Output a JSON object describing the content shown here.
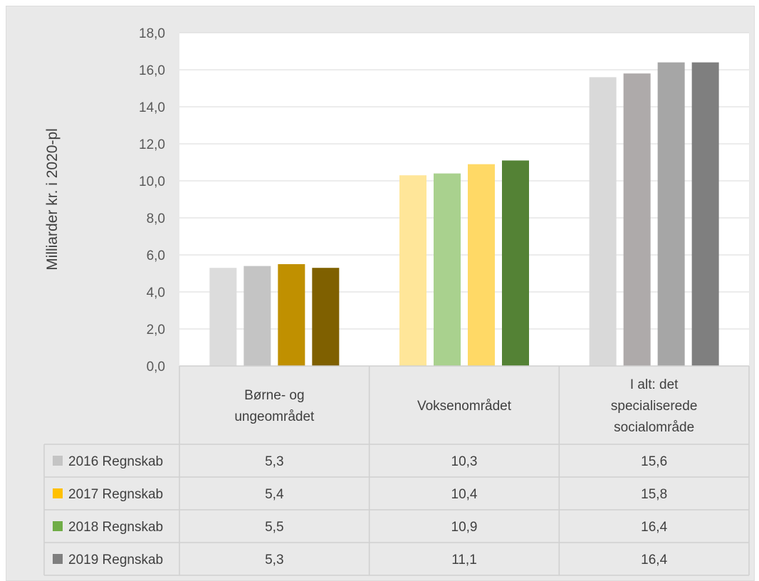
{
  "chart_data": {
    "type": "bar",
    "ylabel": "Milliarder kr. i 2020-pl",
    "ylim": [
      0,
      18
    ],
    "yticks": [
      "0,0",
      "2,0",
      "4,0",
      "6,0",
      "8,0",
      "10,0",
      "12,0",
      "14,0",
      "16,0",
      "18,0"
    ],
    "grid": true,
    "categories": [
      {
        "lines": [
          "Børne- og",
          "ungeområdet"
        ]
      },
      {
        "lines": [
          "Voksenområdet"
        ]
      },
      {
        "lines": [
          "I alt: det",
          "specialiserede",
          "socialområde"
        ]
      }
    ],
    "series": [
      {
        "name": "2016 Regnskab",
        "values": [
          5.3,
          10.3,
          15.6
        ],
        "labels": [
          "5,3",
          "10,3",
          "15,6"
        ],
        "legend_color": "#c4c4c4"
      },
      {
        "name": "2017 Regnskab",
        "values": [
          5.4,
          10.4,
          15.8
        ],
        "labels": [
          "5,4",
          "10,4",
          "15,8"
        ],
        "legend_color": "#ffc000"
      },
      {
        "name": "2018 Regnskab",
        "values": [
          5.5,
          10.9,
          16.4
        ],
        "labels": [
          "5,5",
          "10,9",
          "16,4"
        ],
        "legend_color": "#70ad47"
      },
      {
        "name": "2019 Regnskab",
        "values": [
          5.3,
          11.1,
          16.4
        ],
        "labels": [
          "5,3",
          "11,1",
          "16,4"
        ],
        "legend_color": "#7f7f7f"
      }
    ],
    "bar_colors": [
      [
        "#dcdcdc",
        "#c4c4c4",
        "#c09000",
        "#7f6000"
      ],
      [
        "#ffe699",
        "#a9d18e",
        "#ffd966",
        "#548235"
      ],
      [
        "#d9d9d9",
        "#aeaaaa",
        "#a6a6a6",
        "#7f7f7f"
      ]
    ],
    "data_table": true
  }
}
